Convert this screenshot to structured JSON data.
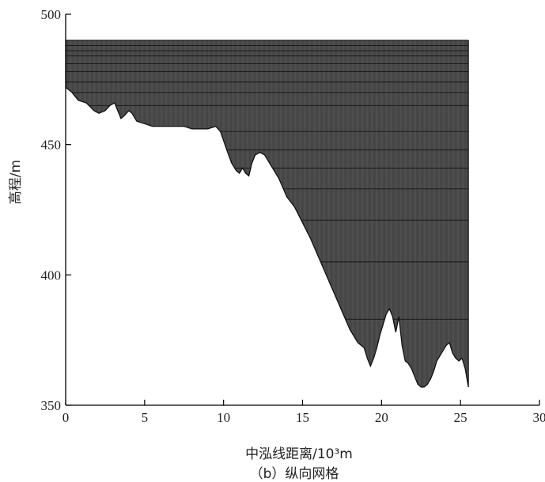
{
  "chart_data": {
    "type": "area",
    "caption": "（b）纵向网格",
    "xlabel": "中泓线距离/10³m",
    "ylabel": "高程/m",
    "xlim": [
      0,
      30
    ],
    "ylim": [
      350,
      500
    ],
    "x_ticks": [
      0,
      5,
      10,
      15,
      20,
      25,
      30
    ],
    "y_ticks": [
      350,
      400,
      450,
      500
    ],
    "water_surface_elevation": 490,
    "domain_x_range": [
      0,
      25.5
    ],
    "horizontal_layer_elevations": [
      488,
      486,
      484,
      481,
      478,
      474,
      470,
      465,
      455,
      448,
      441,
      433,
      421,
      405,
      383
    ],
    "vertical_grid_spacing": 0.06,
    "riverbed_profile": {
      "x": [
        0,
        0.4,
        0.8,
        1.3,
        1.8,
        2.1,
        2.5,
        2.8,
        3.1,
        3.3,
        3.5,
        3.7,
        4.0,
        4.2,
        4.5,
        5.0,
        5.5,
        6.0,
        6.5,
        7.0,
        7.5,
        8.0,
        8.5,
        9.0,
        9.5,
        9.8,
        10.2,
        10.5,
        10.8,
        11.0,
        11.2,
        11.4,
        11.6,
        11.8,
        12.0,
        12.3,
        12.6,
        13.0,
        13.5,
        14.0,
        14.5,
        15.0,
        15.5,
        16.0,
        16.5,
        17.0,
        17.5,
        18.0,
        18.5,
        18.9,
        19.1,
        19.3,
        19.5,
        19.7,
        19.9,
        20.1,
        20.3,
        20.5,
        20.7,
        20.9,
        21.1,
        21.3,
        21.5,
        21.7,
        21.9,
        22.1,
        22.3,
        22.5,
        22.7,
        22.9,
        23.1,
        23.3,
        23.5,
        23.7,
        23.9,
        24.1,
        24.3,
        24.5,
        24.7,
        24.9,
        25.1,
        25.3,
        25.5
      ],
      "y": [
        472,
        470,
        467,
        466,
        463,
        462,
        463,
        465,
        466,
        463,
        460,
        461,
        463,
        462,
        459,
        458,
        457,
        457,
        457,
        457,
        457,
        456,
        456,
        456,
        457,
        455,
        448,
        443,
        440,
        439,
        441,
        439,
        438,
        443,
        446,
        447,
        446,
        442,
        437,
        430,
        426,
        420,
        414,
        407,
        400,
        393,
        386,
        379,
        374,
        372,
        368,
        365,
        368,
        372,
        377,
        381,
        385,
        387,
        384,
        378,
        384,
        373,
        367,
        366,
        364,
        361,
        358,
        357,
        357,
        358,
        360,
        363,
        367,
        369,
        371,
        373,
        374,
        370,
        368,
        367,
        368,
        364,
        357
      ]
    }
  }
}
